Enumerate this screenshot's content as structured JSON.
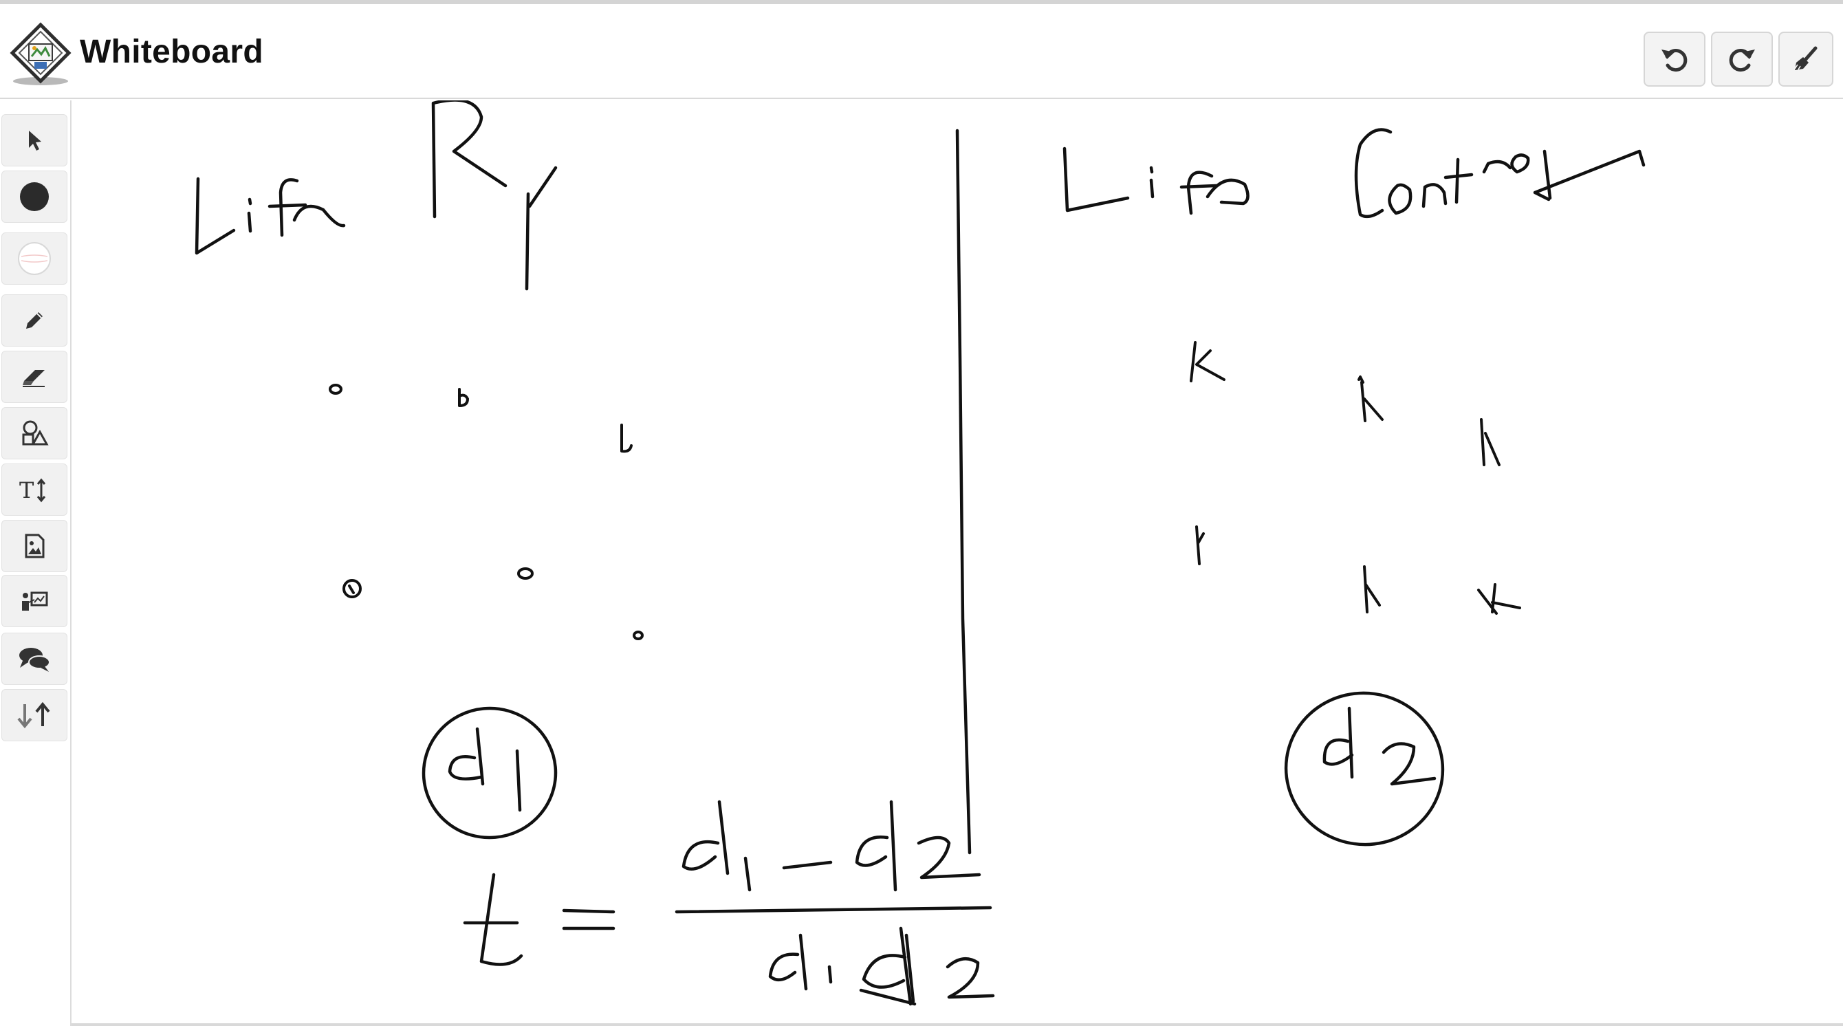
{
  "app": {
    "title": "Whiteboard",
    "logo_icon": "whiteboard-logo-icon"
  },
  "header": {
    "buttons": [
      {
        "name": "undo-button",
        "icon": "undo-icon"
      },
      {
        "name": "redo-button",
        "icon": "redo-icon"
      },
      {
        "name": "clear-board-button",
        "icon": "broom-icon"
      }
    ]
  },
  "sidebar": {
    "tools": [
      {
        "name": "select-tool",
        "icon": "pointer-icon"
      },
      {
        "name": "stroke-color-tool",
        "icon": "filled-circle-icon",
        "color": "#2b2b2b"
      },
      {
        "name": "fill-color-tool",
        "icon": "empty-circle-icon",
        "color": "#ffffff"
      },
      {
        "name": "pencil-tool",
        "icon": "pencil-icon"
      },
      {
        "name": "eraser-tool",
        "icon": "eraser-icon"
      },
      {
        "name": "shapes-tool",
        "icon": "shapes-icon"
      },
      {
        "name": "text-tool",
        "icon": "text-size-icon",
        "label": "T↕"
      },
      {
        "name": "image-tool",
        "icon": "image-icon"
      },
      {
        "name": "presentation-tool",
        "icon": "presentation-icon"
      },
      {
        "name": "comments-tool",
        "icon": "comments-icon"
      },
      {
        "name": "import-export-tool",
        "icon": "arrows-up-down-icon"
      }
    ]
  },
  "board": {
    "ink_color": "#111111"
  }
}
